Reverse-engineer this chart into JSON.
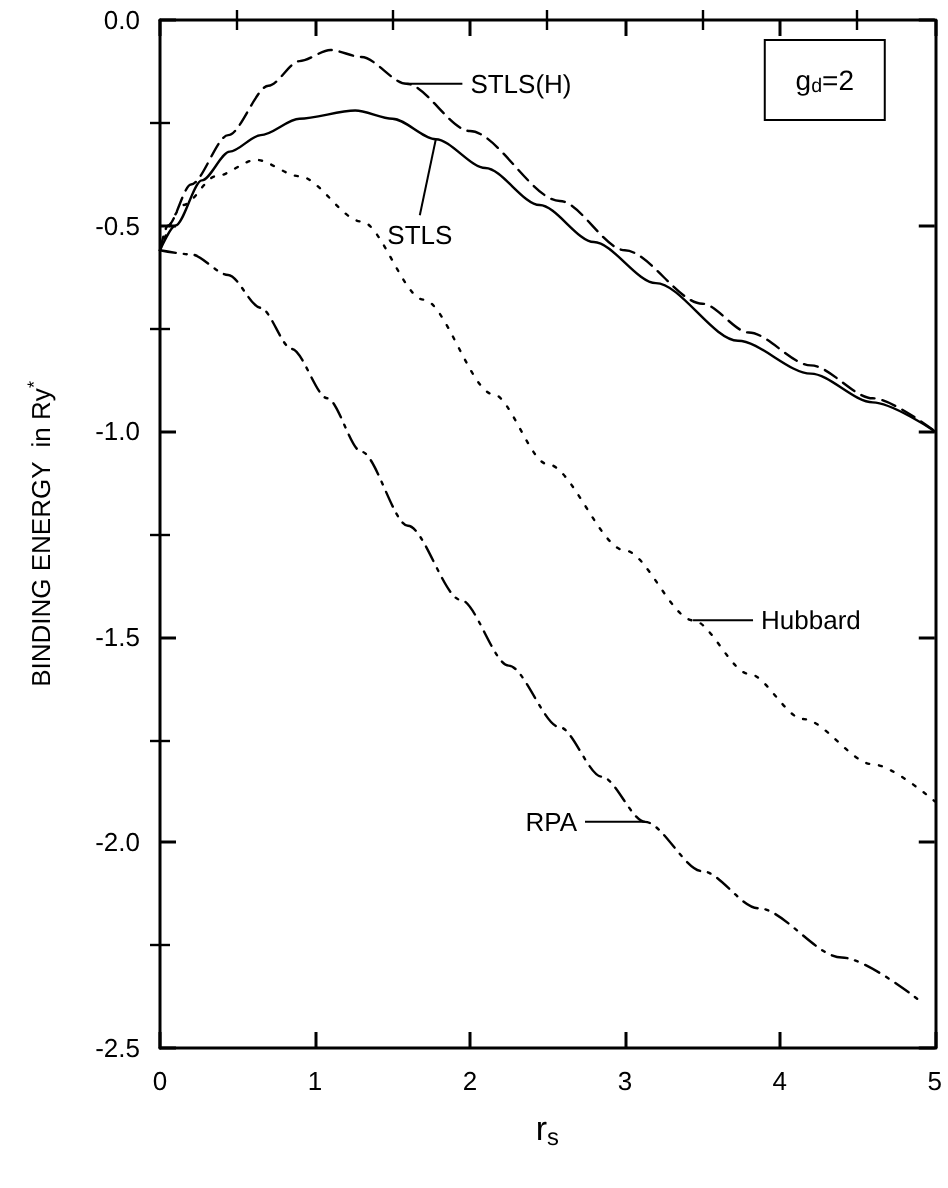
{
  "chart_data": {
    "type": "line",
    "xlabel": "r$_{s}$",
    "ylabel": "BINDING ENERGY  in Ry$^{*}$",
    "xlim": [
      0,
      5
    ],
    "xticks": [
      0,
      1,
      2,
      3,
      4,
      5
    ],
    "ylim": [
      -2.5,
      0
    ],
    "yticks": [
      {
        "value": 0,
        "label": "0.0"
      },
      -0.5,
      {
        "value": -1,
        "label": "-1.0"
      },
      -1.5,
      {
        "value": -2,
        "label": "-2.0"
      },
      -2.5
    ],
    "grid": false,
    "marker": "none",
    "series": [
      {
        "color": "#000000",
        "line_style": "dashed",
        "x": [
          0,
          0.05,
          0.2,
          0.44,
          0.7,
          0.9,
          1.1,
          1.3,
          1.59,
          2.0,
          2.58,
          3.0,
          3.5,
          3.8,
          4.2,
          4.6,
          5.0
        ],
        "values": [
          -0.56,
          -0.5,
          -0.4,
          -0.28,
          -0.16,
          -0.1,
          -0.073,
          -0.09,
          -0.155,
          -0.27,
          -0.44,
          -0.56,
          -0.69,
          -0.76,
          -0.84,
          -0.92,
          -1.0
        ]
      },
      {
        "color": "#000000",
        "line_style": "solid",
        "x": [
          0,
          0.1,
          0.27,
          0.45,
          0.65,
          0.9,
          1.26,
          1.5,
          1.78,
          2.1,
          2.45,
          2.8,
          3.2,
          3.73,
          4.2,
          4.6,
          5.0
        ],
        "values": [
          -0.56,
          -0.5,
          -0.39,
          -0.32,
          -0.28,
          -0.24,
          -0.22,
          -0.24,
          -0.29,
          -0.36,
          -0.45,
          -0.54,
          -0.64,
          -0.78,
          -0.86,
          -0.93,
          -1.0
        ]
      },
      {
        "color": "#000000",
        "line_style": "dotted",
        "x": [
          0,
          0.15,
          0.36,
          0.62,
          0.9,
          1.3,
          1.7,
          2.15,
          2.5,
          3.0,
          3.44,
          3.8,
          4.15,
          4.6,
          5.0
        ],
        "values": [
          -0.56,
          -0.45,
          -0.38,
          -0.34,
          -0.38,
          -0.49,
          -0.68,
          -0.91,
          -1.08,
          -1.29,
          -1.46,
          -1.59,
          -1.7,
          -1.81,
          -1.9
        ]
      },
      {
        "color": "#000000",
        "line_style": "dashdot",
        "x": [
          0,
          0.2,
          0.44,
          0.65,
          0.85,
          1.08,
          1.3,
          1.6,
          1.94,
          2.25,
          2.58,
          2.85,
          3.13,
          3.5,
          3.86,
          4.4,
          4.92
        ],
        "values": [
          -0.56,
          -0.57,
          -0.62,
          -0.7,
          -0.8,
          -0.92,
          -1.05,
          -1.23,
          -1.41,
          -1.57,
          -1.72,
          -1.84,
          -1.95,
          -2.07,
          -2.16,
          -2.28,
          -2.39
        ]
      }
    ],
    "annotations": [
      {
        "text": "STLS(H)",
        "x": 1.59,
        "y": -0.155
      },
      {
        "text": "STLS",
        "x": 1.78,
        "y": -0.29
      },
      {
        "text": "Hubbard",
        "x": 3.44,
        "y": -1.46
      },
      {
        "text": "RPA",
        "x": 3.13,
        "y": -1.95
      },
      "g$_{d}$=2"
    ]
  }
}
